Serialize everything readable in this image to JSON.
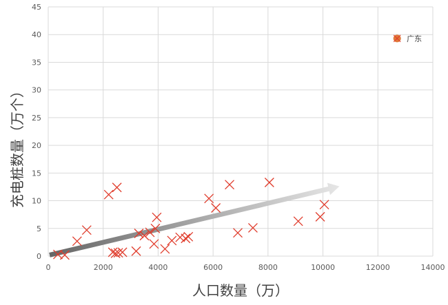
{
  "chart_data": {
    "type": "scatter",
    "xlabel": "人口数量（万）",
    "ylabel": "充电桩数量（万个）",
    "xlim": [
      0,
      14000
    ],
    "ylim": [
      0,
      45
    ],
    "x_ticks": [
      0,
      2000,
      4000,
      6000,
      8000,
      10000,
      12000,
      14000
    ],
    "y_ticks": [
      0,
      5,
      10,
      15,
      20,
      25,
      30,
      35,
      40,
      45
    ],
    "grid": true,
    "colors": {
      "points": "#e03c2c",
      "highlight": "#e07a3a",
      "trend": "#888888"
    },
    "series": [
      {
        "marker": "x",
        "points": [
          [
            350,
            0.3
          ],
          [
            600,
            0.2
          ],
          [
            1050,
            2.7
          ],
          [
            1400,
            4.7
          ],
          [
            2200,
            11.1
          ],
          [
            2500,
            12.4
          ],
          [
            2350,
            0.7
          ],
          [
            2450,
            0.5
          ],
          [
            2550,
            0.6
          ],
          [
            2700,
            0.7
          ],
          [
            3200,
            0.9
          ],
          [
            3300,
            4.1
          ],
          [
            3500,
            3.7
          ],
          [
            3700,
            4.3
          ],
          [
            3850,
            2.2
          ],
          [
            3900,
            5.0
          ],
          [
            3950,
            7.0
          ],
          [
            4250,
            1.3
          ],
          [
            4500,
            2.8
          ],
          [
            4800,
            3.4
          ],
          [
            5000,
            3.2
          ],
          [
            5100,
            3.5
          ],
          [
            5850,
            10.4
          ],
          [
            6100,
            8.7
          ],
          [
            6600,
            12.9
          ],
          [
            6900,
            4.2
          ],
          [
            7450,
            5.1
          ],
          [
            8050,
            13.3
          ],
          [
            9100,
            6.3
          ],
          [
            9900,
            7.1
          ],
          [
            10050,
            9.3
          ]
        ]
      },
      {
        "name": "广东",
        "marker": "circle",
        "points": [
          [
            12700,
            39.3
          ]
        ]
      }
    ],
    "trend_arrow": {
      "from": [
        50,
        0.2
      ],
      "to": [
        10600,
        12.6
      ]
    }
  }
}
